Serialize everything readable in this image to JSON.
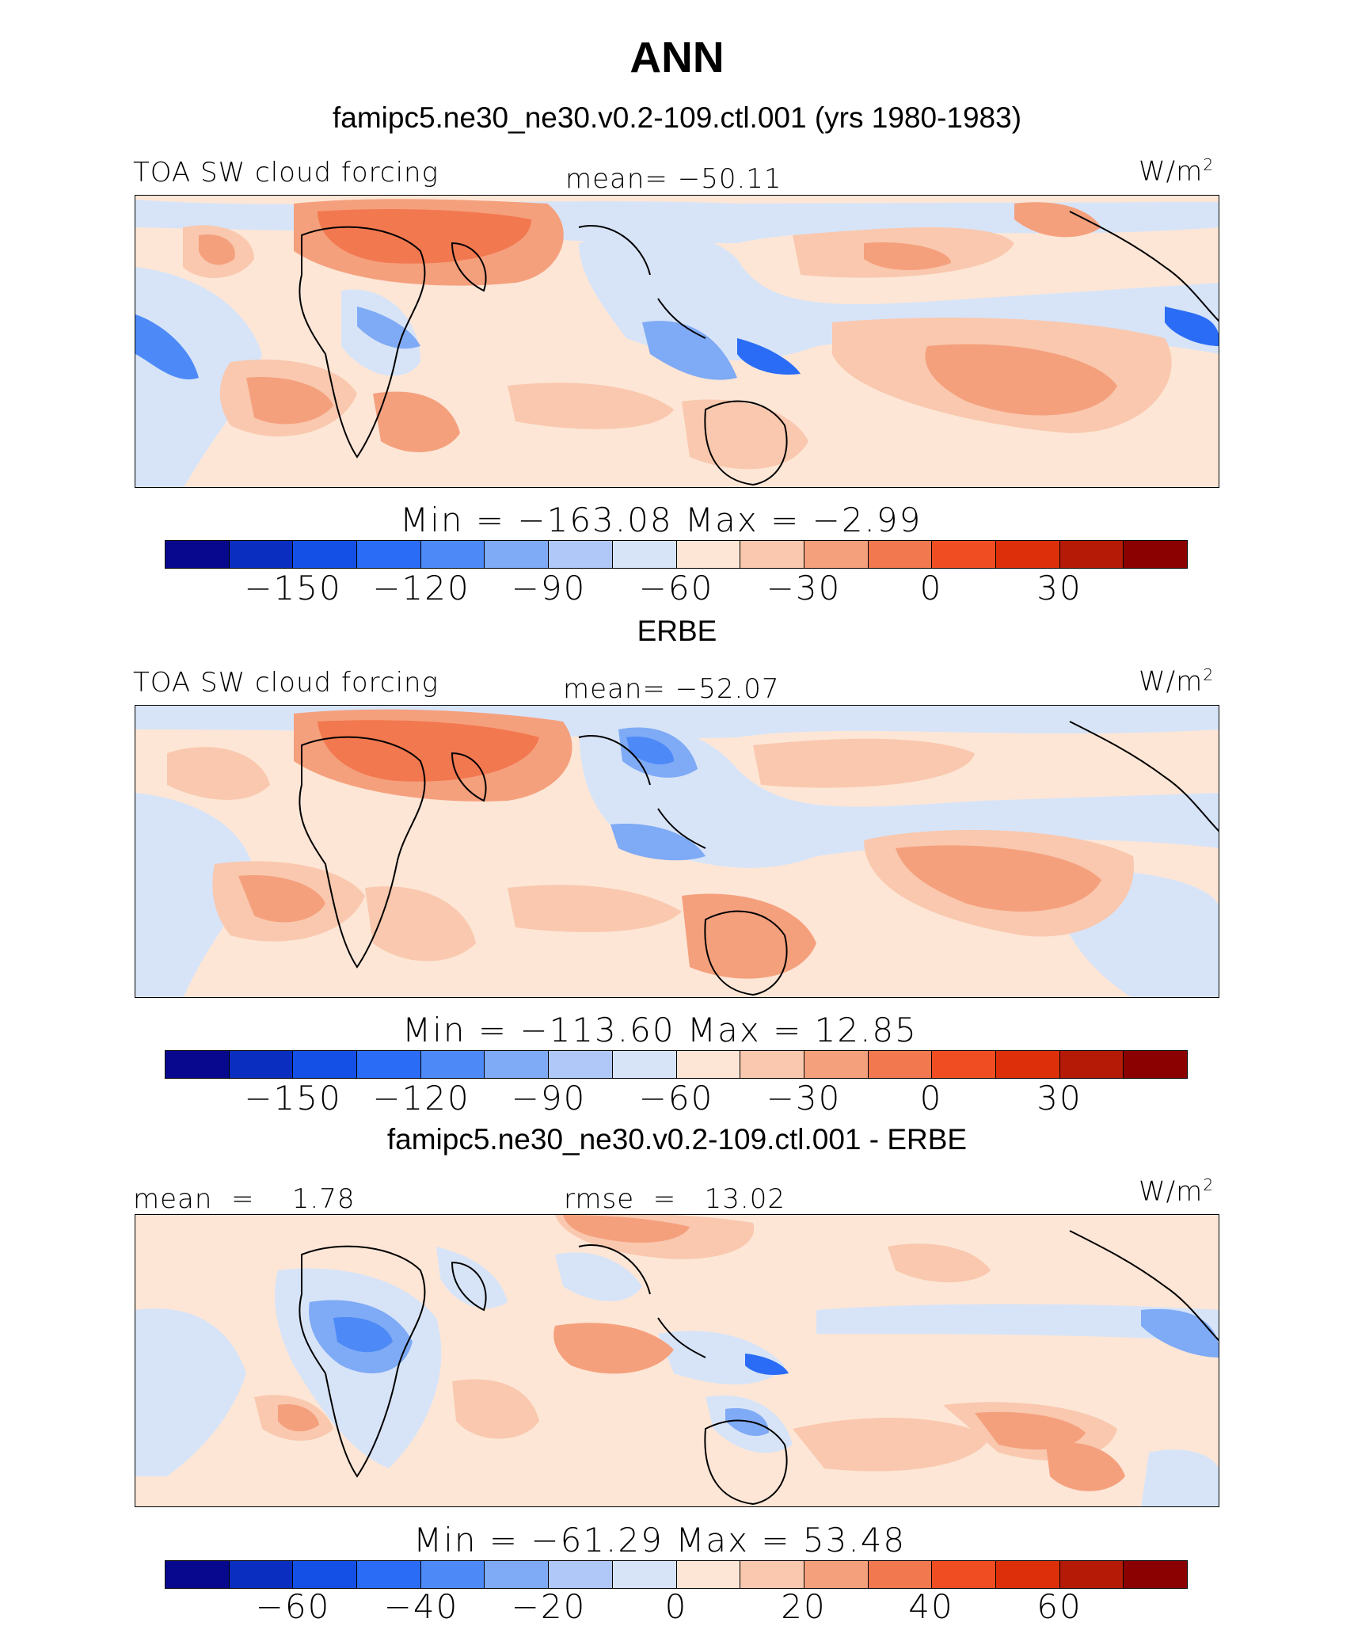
{
  "title": "ANN",
  "palette": [
    "#08088f",
    "#0a2fc0",
    "#1450e6",
    "#2a6cf5",
    "#4d8af7",
    "#7faaf5",
    "#b0c8f7",
    "#d7e4f8",
    "#fde6d6",
    "#f9c8ae",
    "#f5a07d",
    "#f27850",
    "#f04d22",
    "#dc2f0a",
    "#b41a06",
    "#8b0000"
  ],
  "panels": [
    {
      "heading": "famipc5.ne30_ne30.v0.2-109.ctl.001 (yrs 1980-1983)",
      "left_label": "TOA SW cloud forcing",
      "center_label": "mean=  −50.11",
      "units": "W/m",
      "units_sup": "2",
      "stats": "Min  =  −163.08  Max  =   −2.99",
      "ticks": [
        "−150",
        "−120",
        "−90",
        "−60",
        "−30",
        "0",
        "30"
      ]
    },
    {
      "heading": "ERBE",
      "left_label": "TOA SW cloud forcing",
      "center_label": "mean=  −52.07",
      "units": "W/m",
      "units_sup": "2",
      "stats": "Min  =  −113.60  Max  =   12.85",
      "ticks": [
        "−150",
        "−120",
        "−90",
        "−60",
        "−30",
        "0",
        "30"
      ]
    },
    {
      "heading": "famipc5.ne30_ne30.v0.2-109.ctl.001 - ERBE",
      "left_label": "mean  =    1.78",
      "center_label": "rmse  =   13.02",
      "units": "W/m",
      "units_sup": "2",
      "stats": "Min  =  −61.29  Max  =   53.48",
      "ticks": [
        "−60",
        "−40",
        "−20",
        "0",
        "20",
        "40",
        "60"
      ]
    }
  ]
}
